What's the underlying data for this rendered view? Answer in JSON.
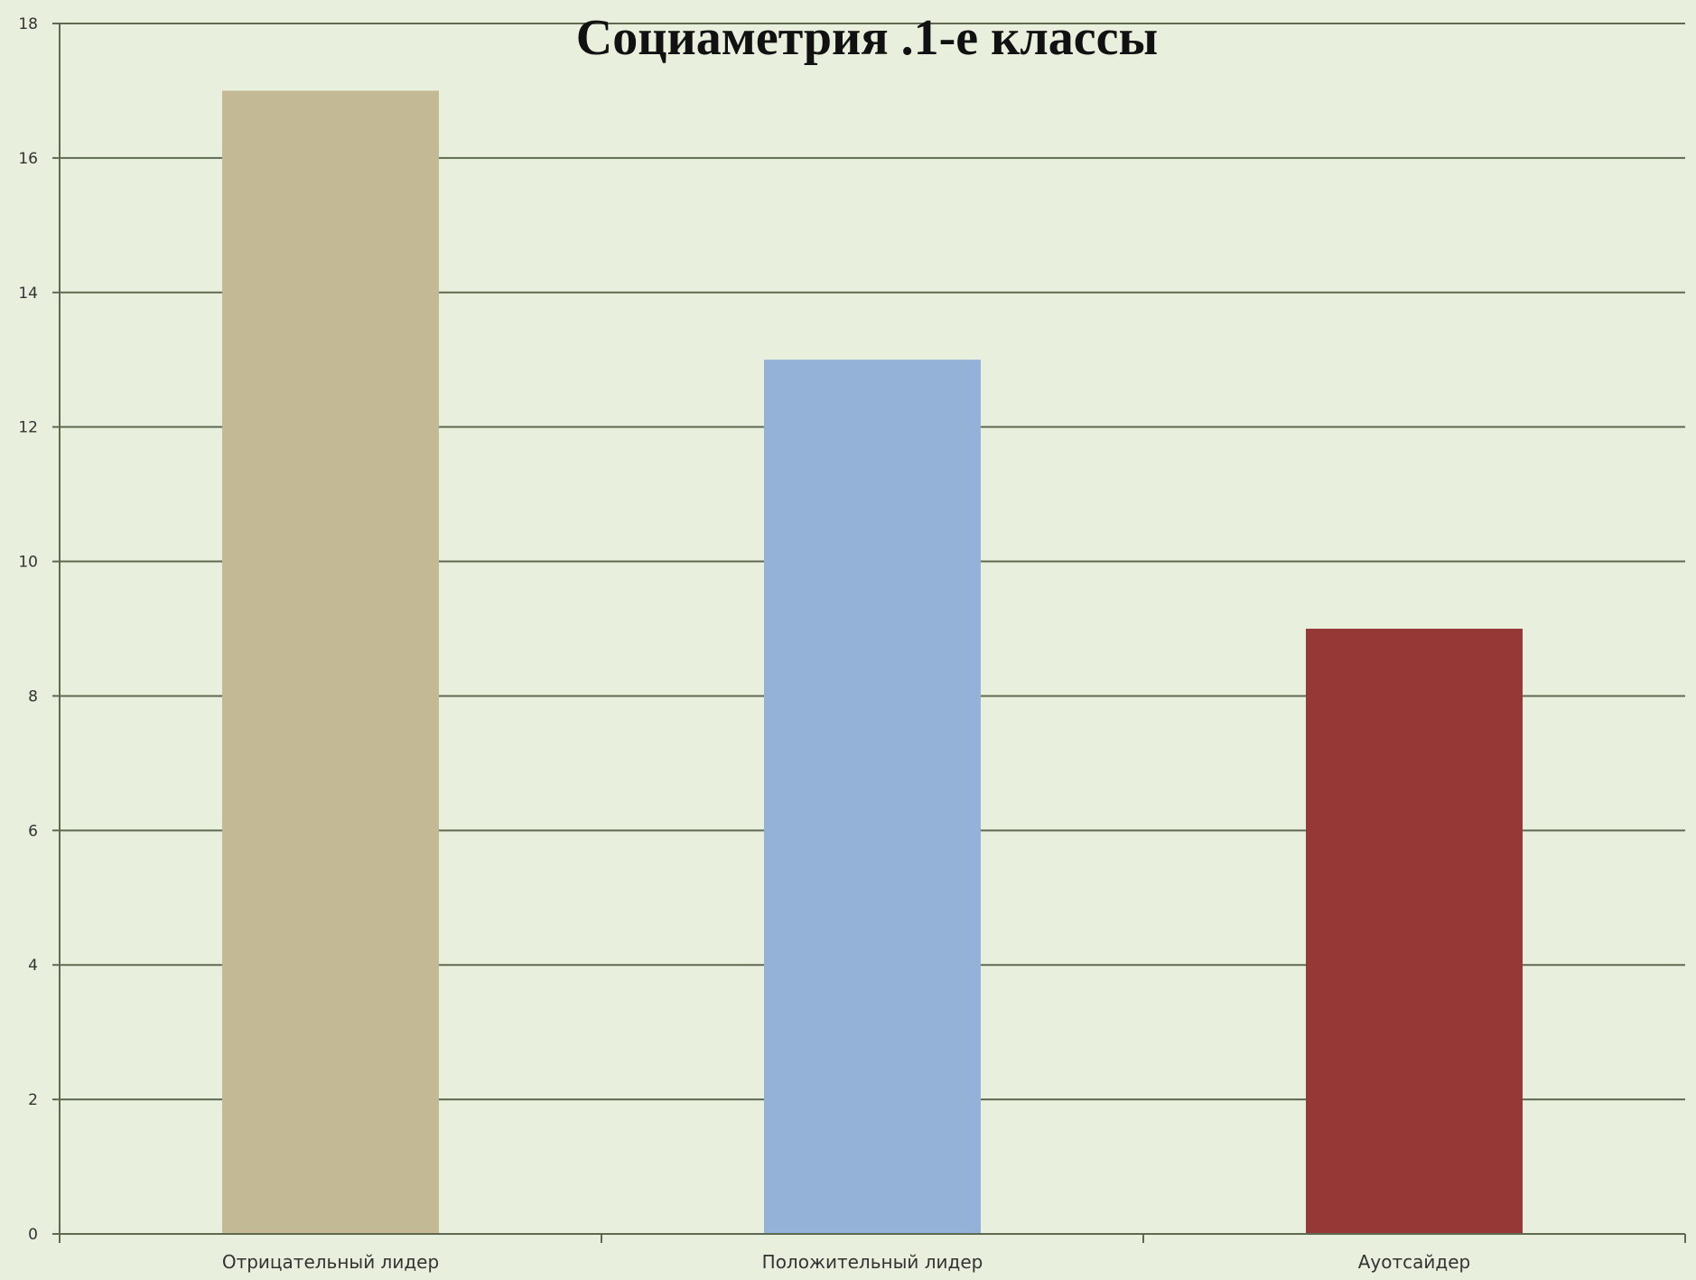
{
  "chart_data": {
    "type": "bar",
    "title": "Социаметрия .1-е классы",
    "xlabel": "",
    "ylabel": "",
    "categories": [
      "Отрицательный лидер",
      "Положительный лидер",
      "Ауотсайдер"
    ],
    "values": [
      17,
      13,
      9
    ],
    "bar_colors": [
      "#c4b995",
      "#94b2d8",
      "#963836"
    ],
    "ylim": [
      0,
      18
    ],
    "y_ticks": [
      0,
      2,
      4,
      6,
      8,
      10,
      12,
      14,
      16,
      18
    ],
    "y_tick_labels": [
      "0",
      "2",
      "4",
      "6",
      "8",
      "10",
      "12",
      "14",
      "16",
      "18"
    ],
    "grid": true,
    "legend": "none"
  },
  "colors": {
    "background": "#e9efdd",
    "gridline": "#5d6a4f",
    "axis": "#5d6a4f"
  }
}
